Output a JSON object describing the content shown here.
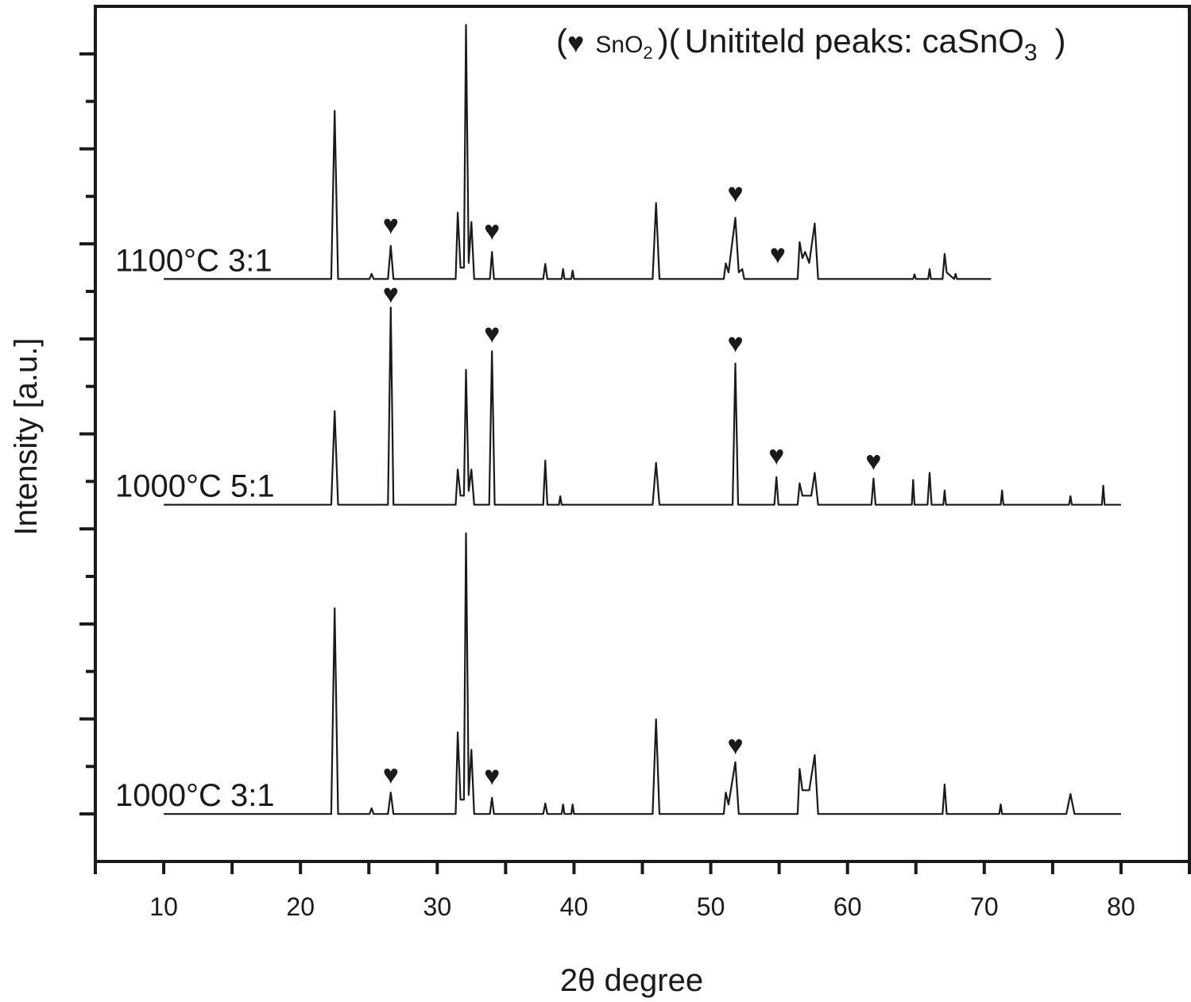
{
  "chart_data": {
    "type": "line",
    "xlabel": "2θ degree",
    "ylabel": "Intensity [a.u.]",
    "xlim": [
      5,
      85
    ],
    "ylim": [
      0,
      18
    ],
    "xticks": [
      10,
      20,
      30,
      40,
      50,
      60,
      70,
      80
    ],
    "xminor_ticks": [
      5,
      15,
      25,
      35,
      45,
      55,
      65,
      75,
      85
    ],
    "yticks": [
      1,
      2,
      3,
      4,
      5,
      6,
      7,
      8,
      9,
      10,
      11,
      12,
      13,
      14,
      15,
      16,
      17
    ],
    "legend_parts": [
      "(",
      "♥",
      "SnO",
      "2",
      ")(",
      "Unititeld peaks: caSnO",
      "3",
      ")"
    ],
    "marker_symbol": "♥",
    "markers": {
      "x": [
        26.6,
        34.0,
        51.8,
        54.9,
        26.6,
        34.0,
        51.8,
        54.8,
        61.9,
        26.6,
        34.0,
        51.8
      ],
      "y": [
        13.41,
        13.29,
        14.08,
        12.79,
        11.96,
        11.12,
        10.92,
        8.56,
        8.44,
        1.84,
        1.81,
        2.46
      ]
    },
    "series": [
      {
        "name": "1100°C 3:1",
        "color": "#1a1a1a",
        "x": [
          10,
          22.25,
          22.5,
          22.75,
          25.05,
          25.2,
          25.35,
          26.4,
          26.6,
          26.8,
          31.35,
          31.5,
          31.7,
          31.95,
          32.1,
          32.3,
          32.5,
          32.7,
          33.85,
          34.0,
          34.15,
          37.75,
          37.9,
          38.05,
          39.1,
          39.2,
          39.3,
          39.8,
          39.9,
          40.0,
          45.75,
          46.0,
          46.25,
          50.95,
          51.1,
          51.3,
          51.8,
          52.05,
          52.3,
          52.45,
          56.35,
          56.5,
          56.7,
          56.9,
          57.2,
          57.6,
          57.85,
          64.8,
          64.9,
          65.0,
          65.9,
          66.0,
          66.1,
          66.95,
          67.1,
          67.25,
          67.8,
          67.9,
          68.0,
          70.5
        ],
        "values": [
          12.26,
          12.26,
          15.8,
          12.26,
          12.26,
          12.37,
          12.26,
          12.26,
          12.96,
          12.26,
          12.26,
          13.66,
          12.5,
          12.5,
          17.61,
          12.6,
          13.46,
          12.26,
          12.26,
          12.83,
          12.26,
          12.26,
          12.58,
          12.26,
          12.26,
          12.47,
          12.26,
          12.26,
          12.44,
          12.26,
          12.26,
          13.86,
          12.26,
          12.26,
          12.59,
          12.4,
          13.55,
          12.4,
          12.47,
          12.26,
          12.26,
          13.04,
          12.7,
          12.83,
          12.6,
          13.43,
          12.26,
          12.26,
          12.36,
          12.26,
          12.26,
          12.47,
          12.26,
          12.26,
          12.79,
          12.4,
          12.26,
          12.37,
          12.26,
          12.26
        ]
      },
      {
        "name": "1000°C 5:1",
        "color": "#1a1a1a",
        "x": [
          10,
          22.25,
          22.5,
          22.75,
          26.4,
          26.6,
          26.8,
          31.35,
          31.5,
          31.7,
          31.95,
          32.1,
          32.3,
          32.5,
          32.7,
          33.8,
          34.0,
          34.2,
          37.75,
          37.9,
          38.05,
          38.9,
          39.0,
          39.1,
          45.75,
          46.0,
          46.25,
          51.6,
          51.8,
          52.0,
          54.65,
          54.8,
          54.95,
          56.35,
          56.5,
          56.7,
          57.35,
          57.6,
          57.85,
          61.75,
          61.9,
          62.05,
          64.7,
          64.8,
          64.9,
          65.85,
          66.0,
          66.15,
          67.0,
          67.1,
          67.2,
          71.2,
          71.3,
          71.4,
          76.2,
          76.3,
          76.4,
          78.6,
          78.7,
          78.8,
          80
        ],
        "values": [
          7.51,
          7.51,
          9.48,
          7.51,
          7.51,
          11.66,
          7.51,
          7.51,
          8.25,
          7.7,
          7.7,
          10.35,
          7.8,
          8.25,
          7.51,
          7.51,
          10.74,
          7.51,
          7.51,
          8.44,
          7.51,
          7.51,
          7.69,
          7.51,
          7.51,
          8.39,
          7.51,
          7.51,
          10.48,
          7.51,
          7.51,
          8.09,
          7.51,
          7.51,
          7.96,
          7.7,
          7.7,
          8.18,
          7.51,
          7.51,
          8.06,
          7.51,
          7.51,
          8.03,
          7.51,
          7.51,
          8.18,
          7.51,
          7.51,
          7.81,
          7.51,
          7.51,
          7.81,
          7.51,
          7.51,
          7.69,
          7.51,
          7.51,
          7.91,
          7.51,
          7.51
        ]
      },
      {
        "name": "1000°C 3:1",
        "color": "#1a1a1a",
        "x": [
          10,
          22.25,
          22.5,
          22.75,
          25.05,
          25.2,
          25.35,
          26.4,
          26.6,
          26.8,
          31.35,
          31.5,
          31.7,
          31.95,
          32.1,
          32.3,
          32.5,
          32.7,
          33.85,
          34.0,
          34.15,
          37.75,
          37.9,
          38.05,
          39.1,
          39.2,
          39.3,
          39.8,
          39.9,
          40.0,
          45.75,
          46.0,
          46.25,
          50.95,
          51.1,
          51.3,
          51.8,
          52.05,
          56.35,
          56.5,
          56.7,
          57.2,
          57.6,
          57.85,
          66.95,
          67.1,
          67.25,
          71.1,
          71.2,
          71.3,
          76.0,
          76.3,
          76.6,
          80
        ],
        "values": [
          1.0,
          1.0,
          5.33,
          1.0,
          1.0,
          1.12,
          1.0,
          1.0,
          1.45,
          1.0,
          1.0,
          2.72,
          1.3,
          1.3,
          6.91,
          1.4,
          2.35,
          1.0,
          1.0,
          1.34,
          1.0,
          1.0,
          1.22,
          1.0,
          1.0,
          1.2,
          1.0,
          1.0,
          1.2,
          1.0,
          1.0,
          2.99,
          1.0,
          1.0,
          1.45,
          1.2,
          2.09,
          1.0,
          1.0,
          1.95,
          1.5,
          1.5,
          2.24,
          1.0,
          1.0,
          1.62,
          1.0,
          1.0,
          1.2,
          1.0,
          1.0,
          1.42,
          1.0,
          1.0
        ]
      }
    ]
  }
}
